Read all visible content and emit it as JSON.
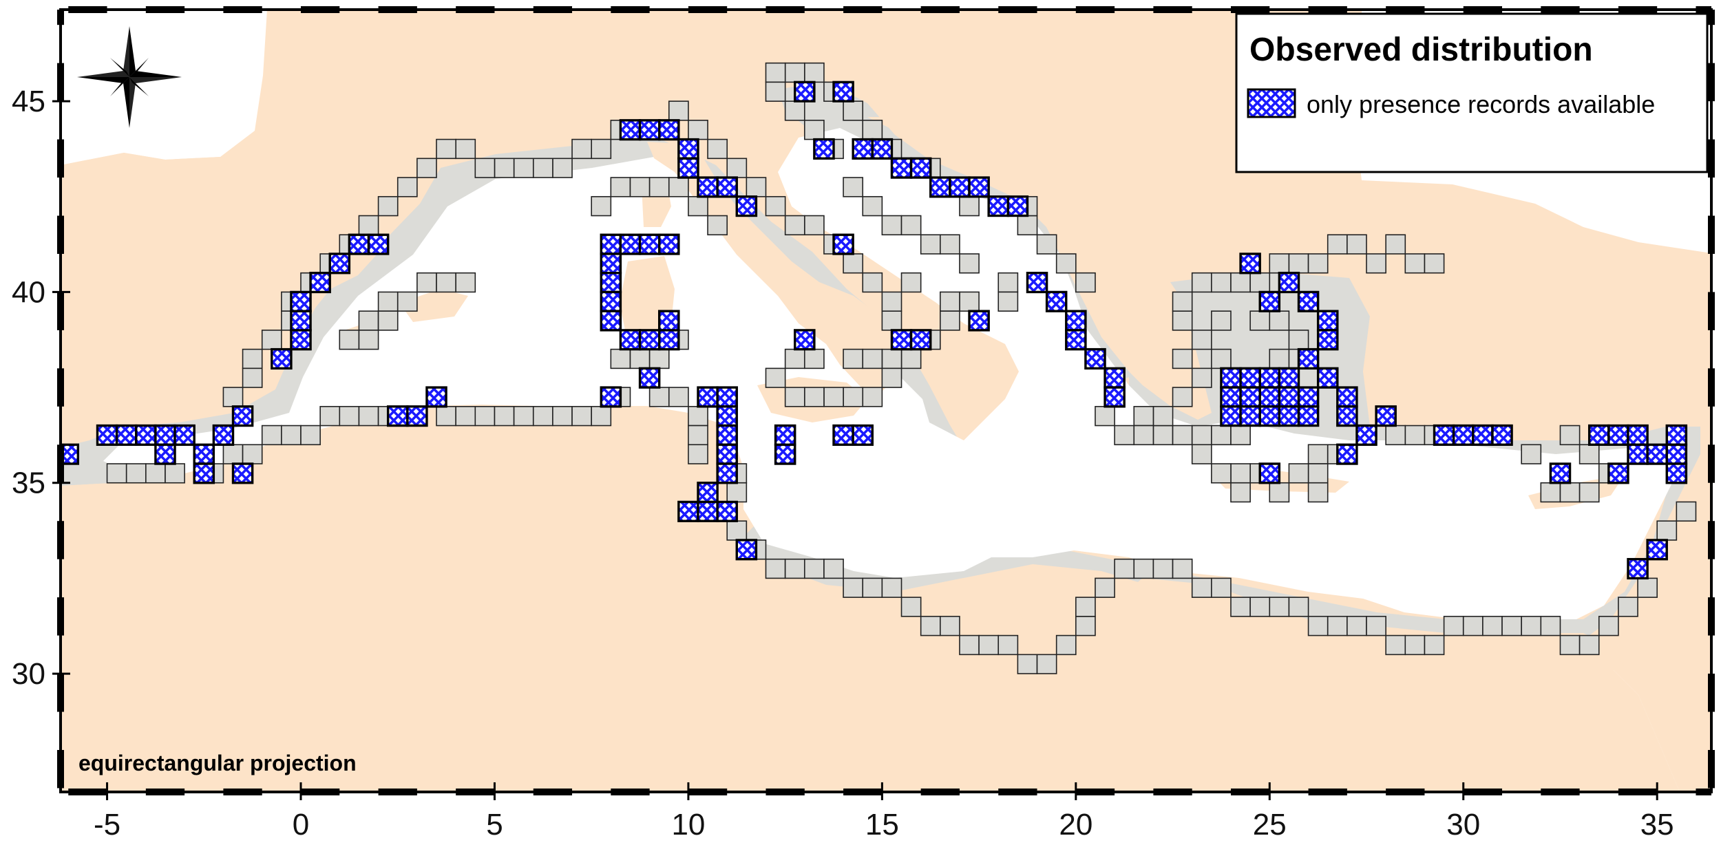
{
  "map": {
    "projection_label": "equirectangular projection",
    "x_range": [
      -6.2,
      36.4
    ],
    "y_range": [
      26.9,
      47.4
    ],
    "x_ticks": [
      -5,
      0,
      5,
      10,
      15,
      20,
      25,
      30,
      35
    ],
    "y_ticks": [
      30,
      35,
      40,
      45
    ],
    "tick_labels_x": [
      "-5",
      "0",
      "5",
      "10",
      "15",
      "20",
      "25",
      "30",
      "35"
    ],
    "tick_labels_y": [
      "30",
      "35",
      "40",
      "45"
    ],
    "colors": {
      "land": "#fde3c8",
      "sea": "#ffffff",
      "shelf": "#dcdcd8",
      "grid_cell": "#d9d9d5",
      "presence": "#1a1aff",
      "frame": "#000000"
    },
    "compass": "compass-rose-icon"
  },
  "legend": {
    "title": "Observed distribution",
    "entries": [
      {
        "label": "only presence records available",
        "symbol": "blue-crosshatch-cell"
      }
    ]
  },
  "chart_data": {
    "type": "grid-map",
    "cell_size_deg": 0.5,
    "presence_cells": [
      [
        -6.0,
        35.75
      ],
      [
        -5.0,
        36.25
      ],
      [
        -4.5,
        36.25
      ],
      [
        -4.0,
        36.25
      ],
      [
        -3.5,
        36.25
      ],
      [
        -3.0,
        36.25
      ],
      [
        -3.5,
        35.75
      ],
      [
        -2.5,
        35.75
      ],
      [
        -2.5,
        35.25
      ],
      [
        -2.0,
        36.25
      ],
      [
        -1.5,
        36.75
      ],
      [
        -1.5,
        35.25
      ],
      [
        -0.5,
        38.25
      ],
      [
        0.0,
        38.75
      ],
      [
        0.0,
        39.25
      ],
      [
        0.0,
        39.75
      ],
      [
        0.5,
        40.25
      ],
      [
        1.0,
        40.75
      ],
      [
        1.5,
        41.25
      ],
      [
        2.0,
        41.25
      ],
      [
        2.5,
        36.75
      ],
      [
        3.0,
        36.75
      ],
      [
        3.5,
        37.25
      ],
      [
        8.0,
        37.25
      ],
      [
        9.0,
        37.75
      ],
      [
        8.0,
        41.25
      ],
      [
        8.5,
        41.25
      ],
      [
        9.0,
        41.25
      ],
      [
        9.5,
        41.25
      ],
      [
        8.0,
        40.75
      ],
      [
        8.0,
        40.25
      ],
      [
        8.0,
        39.75
      ],
      [
        8.0,
        39.25
      ],
      [
        8.5,
        38.75
      ],
      [
        9.0,
        38.75
      ],
      [
        9.5,
        38.75
      ],
      [
        9.5,
        39.25
      ],
      [
        8.5,
        44.25
      ],
      [
        9.0,
        44.25
      ],
      [
        9.5,
        44.25
      ],
      [
        10.0,
        43.75
      ],
      [
        10.0,
        43.25
      ],
      [
        10.5,
        42.75
      ],
      [
        11.0,
        42.75
      ],
      [
        11.5,
        42.25
      ],
      [
        10.5,
        37.25
      ],
      [
        11.0,
        37.25
      ],
      [
        11.0,
        36.75
      ],
      [
        11.0,
        36.25
      ],
      [
        11.0,
        35.75
      ],
      [
        11.0,
        35.25
      ],
      [
        10.5,
        34.75
      ],
      [
        10.0,
        34.25
      ],
      [
        10.5,
        34.25
      ],
      [
        11.0,
        34.25
      ],
      [
        11.5,
        33.25
      ],
      [
        12.5,
        35.75
      ],
      [
        12.5,
        36.25
      ],
      [
        13.0,
        38.75
      ],
      [
        14.0,
        36.25
      ],
      [
        14.5,
        36.25
      ],
      [
        15.5,
        38.75
      ],
      [
        16.0,
        38.75
      ],
      [
        14.0,
        41.25
      ],
      [
        17.5,
        39.25
      ],
      [
        13.0,
        45.25
      ],
      [
        14.0,
        45.25
      ],
      [
        13.5,
        43.75
      ],
      [
        14.5,
        43.75
      ],
      [
        15.0,
        43.75
      ],
      [
        15.5,
        43.25
      ],
      [
        16.0,
        43.25
      ],
      [
        16.5,
        42.75
      ],
      [
        17.0,
        42.75
      ],
      [
        17.5,
        42.75
      ],
      [
        18.0,
        42.25
      ],
      [
        18.5,
        42.25
      ],
      [
        19.0,
        40.25
      ],
      [
        19.5,
        39.75
      ],
      [
        20.0,
        39.25
      ],
      [
        20.0,
        38.75
      ],
      [
        20.5,
        38.25
      ],
      [
        21.0,
        37.75
      ],
      [
        21.0,
        37.25
      ],
      [
        24.5,
        40.75
      ],
      [
        25.0,
        39.75
      ],
      [
        25.5,
        40.25
      ],
      [
        26.0,
        39.75
      ],
      [
        26.5,
        39.25
      ],
      [
        26.5,
        38.75
      ],
      [
        26.0,
        38.25
      ],
      [
        26.5,
        37.75
      ],
      [
        27.0,
        37.25
      ],
      [
        27.0,
        36.75
      ],
      [
        24.0,
        37.75
      ],
      [
        24.5,
        37.75
      ],
      [
        25.0,
        37.75
      ],
      [
        25.5,
        37.75
      ],
      [
        24.0,
        37.25
      ],
      [
        24.5,
        37.25
      ],
      [
        25.0,
        37.25
      ],
      [
        25.5,
        37.25
      ],
      [
        26.0,
        37.25
      ],
      [
        24.0,
        36.75
      ],
      [
        24.5,
        36.75
      ],
      [
        25.0,
        36.75
      ],
      [
        25.5,
        36.75
      ],
      [
        26.0,
        36.75
      ],
      [
        25.0,
        35.25
      ],
      [
        27.0,
        35.75
      ],
      [
        27.5,
        36.25
      ],
      [
        28.0,
        36.75
      ],
      [
        29.5,
        36.25
      ],
      [
        30.0,
        36.25
      ],
      [
        30.5,
        36.25
      ],
      [
        31.0,
        36.25
      ],
      [
        32.5,
        35.25
      ],
      [
        33.5,
        36.25
      ],
      [
        34.0,
        36.25
      ],
      [
        34.5,
        36.25
      ],
      [
        34.5,
        35.75
      ],
      [
        35.0,
        35.75
      ],
      [
        34.0,
        35.25
      ],
      [
        35.5,
        36.25
      ],
      [
        35.5,
        35.75
      ],
      [
        35.5,
        35.25
      ],
      [
        35.0,
        33.25
      ],
      [
        34.5,
        32.75
      ]
    ]
  }
}
